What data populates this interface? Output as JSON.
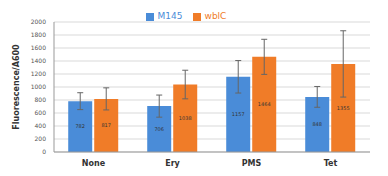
{
  "chart_data": {
    "type": "bar",
    "y_label": "Fluorescence/A600",
    "categories": [
      "None",
      "Ery",
      "PMS",
      "Tet"
    ],
    "series": [
      {
        "name": "M145",
        "color": "#4a8cd8",
        "values": [
          782,
          706,
          1157,
          848
        ],
        "errors": [
          130,
          170,
          250,
          160
        ]
      },
      {
        "name": "wblC",
        "color": "#f07c28",
        "values": [
          817,
          1038,
          1464,
          1355
        ],
        "errors": [
          170,
          220,
          270,
          510
        ]
      }
    ],
    "ylim": [
      0,
      2000
    ],
    "yticks": [
      0,
      200,
      400,
      600,
      800,
      1000,
      1200,
      1400,
      1600,
      1800,
      2000
    ],
    "grid": true,
    "legend": "top",
    "data_labels": true
  }
}
